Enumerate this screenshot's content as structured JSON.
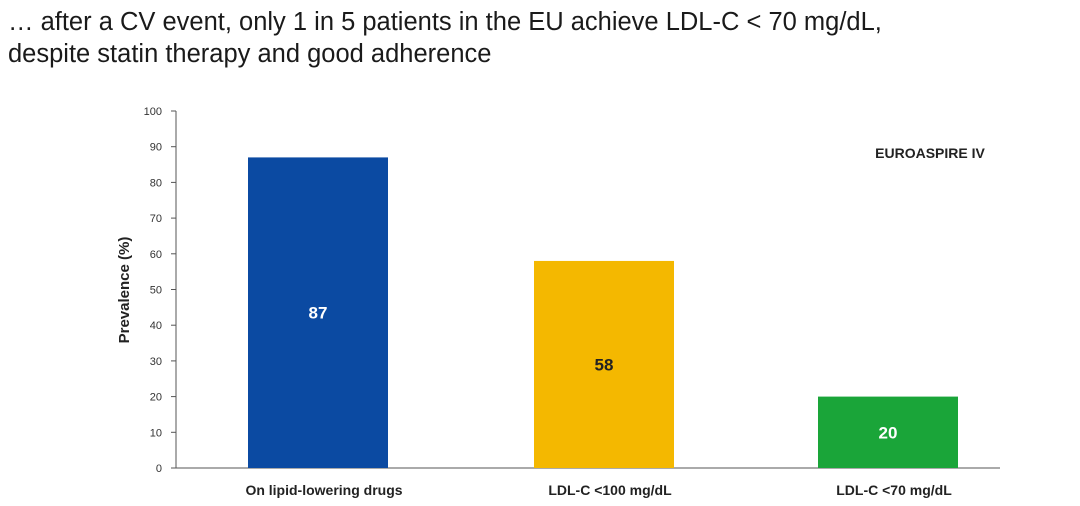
{
  "headline": {
    "line1": "… after a CV event, only 1 in 5 patients in the EU achieve LDL-C < 70 mg/dL,",
    "line2": "despite statin therapy and good adherence"
  },
  "chart_data": {
    "type": "bar",
    "annotation": "EUROASPIRE IV",
    "ylabel": "Prevalence (%)",
    "xlabel": "",
    "ylim": [
      0,
      100
    ],
    "yticks": [
      0,
      10,
      20,
      30,
      40,
      50,
      60,
      70,
      80,
      90,
      100
    ],
    "categories": [
      "On lipid-lowering drugs",
      "LDL-C <100 mg/dL",
      "LDL-C <70 mg/dL"
    ],
    "values": [
      87,
      58,
      20
    ],
    "value_labels": [
      "87",
      "58",
      "20"
    ],
    "colors": [
      "#0b4aa2",
      "#f4b800",
      "#1aa539"
    ],
    "label_colors": [
      "#ffffff",
      "#222222",
      "#ffffff"
    ],
    "grid": false
  }
}
